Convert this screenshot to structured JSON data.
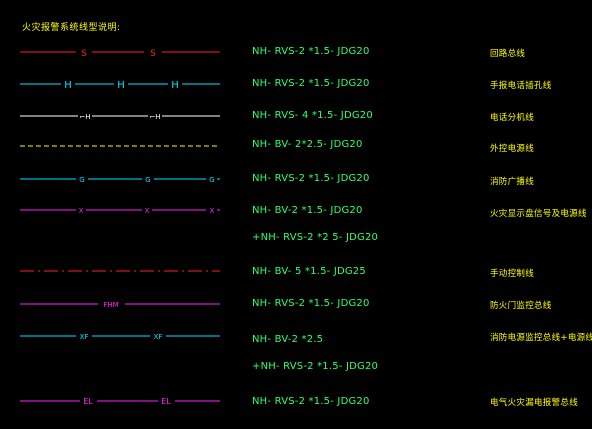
{
  "title": "火灾报警系统线型说明:",
  "colors": {
    "red": "#ff2020",
    "cyan": "#00e5ff",
    "white": "#ffffff",
    "yellow": "#ffff00",
    "magenta": "#ff20ff",
    "green": "#33ff66"
  },
  "rows": [
    {
      "symbol": "S",
      "spec": "NH- RVS-2 *1.5- JDG20",
      "desc": "回路总线"
    },
    {
      "symbol": "H",
      "spec": "NH- RVS-2 *1.5- JDG20",
      "desc": "手报电话插孔线"
    },
    {
      "symbol": "⌐H",
      "spec": "NH- RVS- 4 *1.5- JDG20",
      "desc": "电话分机线"
    },
    {
      "symbol": "",
      "spec": "NH- BV- 2*2.5- JDG20",
      "desc": "外控电源线"
    },
    {
      "symbol": "G",
      "spec": "NH- RVS-2 *1.5- JDG20",
      "desc": "消防广播线"
    },
    {
      "symbol": "X",
      "spec": "NH- BV-2 *1.5- JDG20",
      "spec2": "+NH- RVS-2 *2 5- JDG20",
      "desc": "火灾显示盘信号及电源线"
    },
    {
      "symbol": "",
      "spec": "NH- BV- 5 *1.5- JDG25",
      "desc": "手动控制线"
    },
    {
      "symbol": "FHM",
      "spec": "NH- RVS-2 *1.5- JDG20",
      "desc": "防火门监控总线"
    },
    {
      "symbol": "XF",
      "spec": "NH- BV-2 *2.5",
      "spec2": "+NH- RVS-2 *1.5- JDG20",
      "desc": "消防电源监控总线+电源线"
    },
    {
      "symbol": "EL",
      "spec": "NH- RVS-2 *1.5- JDG20",
      "desc": "电气火灾漏电报警总线"
    }
  ]
}
